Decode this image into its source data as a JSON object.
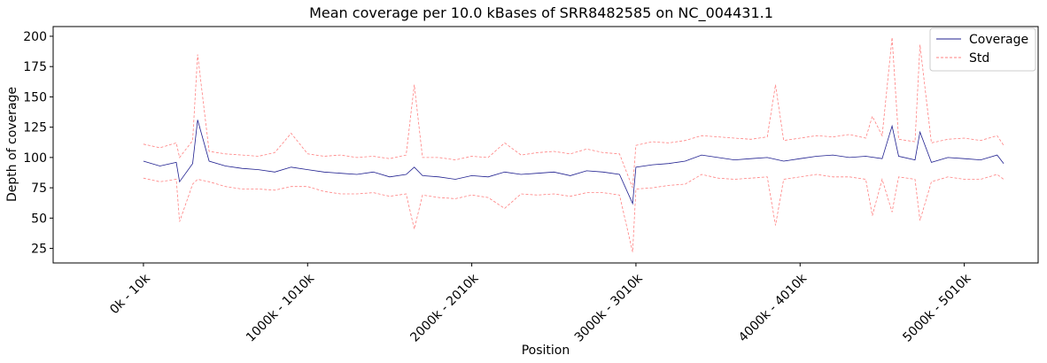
{
  "chart_data": {
    "type": "line",
    "title": "Mean coverage per 10.0 kBases of SRR8482585 on NC_004431.1",
    "xlabel": "Position",
    "ylabel": "Depth of coverage",
    "ylim": [
      13,
      208
    ],
    "xlim": [
      -0.55,
      5.45
    ],
    "x_unit": "Mb",
    "yticks": [
      25,
      50,
      75,
      100,
      125,
      150,
      175,
      200
    ],
    "xticks": [
      {
        "x": 0,
        "label": "0k - 10k"
      },
      {
        "x": 1,
        "label": "1000k - 1010k"
      },
      {
        "x": 2,
        "label": "2000k - 2010k"
      },
      {
        "x": 3,
        "label": "3000k - 3010k"
      },
      {
        "x": 4,
        "label": "4000k - 4010k"
      },
      {
        "x": 5,
        "label": "5000k - 5010k"
      }
    ],
    "grid": false,
    "legend_position": "top-right",
    "colors": {
      "coverage": "#1f1f8f",
      "std": "#ff8080"
    },
    "series": [
      {
        "name": "Coverage",
        "x": [
          0.0,
          0.1,
          0.2,
          0.22,
          0.3,
          0.33,
          0.4,
          0.5,
          0.6,
          0.7,
          0.8,
          0.9,
          1.0,
          1.1,
          1.2,
          1.3,
          1.4,
          1.5,
          1.6,
          1.65,
          1.7,
          1.8,
          1.9,
          2.0,
          2.1,
          2.2,
          2.3,
          2.4,
          2.5,
          2.6,
          2.7,
          2.8,
          2.9,
          2.98,
          3.0,
          3.1,
          3.2,
          3.3,
          3.4,
          3.5,
          3.6,
          3.7,
          3.8,
          3.9,
          4.0,
          4.1,
          4.2,
          4.3,
          4.4,
          4.5,
          4.56,
          4.6,
          4.7,
          4.73,
          4.8,
          4.9,
          5.0,
          5.1,
          5.2,
          5.24
        ],
        "values": [
          97,
          93,
          96,
          80,
          95,
          131,
          97,
          93,
          91,
          90,
          88,
          92,
          90,
          88,
          87,
          86,
          88,
          84,
          86,
          92,
          85,
          84,
          82,
          85,
          84,
          88,
          86,
          87,
          88,
          85,
          89,
          88,
          86,
          62,
          92,
          94,
          95,
          97,
          102,
          100,
          98,
          99,
          100,
          97,
          99,
          101,
          102,
          100,
          101,
          99,
          126,
          101,
          98,
          121,
          96,
          100,
          99,
          98,
          102,
          95
        ]
      },
      {
        "name": "Std",
        "x": [
          0.0,
          0.1,
          0.2,
          0.22,
          0.3,
          0.33,
          0.4,
          0.5,
          0.6,
          0.7,
          0.8,
          0.9,
          1.0,
          1.1,
          1.2,
          1.3,
          1.4,
          1.5,
          1.6,
          1.65,
          1.7,
          1.8,
          1.9,
          2.0,
          2.1,
          2.2,
          2.3,
          2.4,
          2.5,
          2.6,
          2.7,
          2.8,
          2.9,
          2.98,
          3.0,
          3.1,
          3.2,
          3.3,
          3.4,
          3.5,
          3.6,
          3.7,
          3.8,
          3.85,
          3.9,
          4.0,
          4.1,
          4.2,
          4.3,
          4.4,
          4.44,
          4.5,
          4.56,
          4.6,
          4.7,
          4.73,
          4.8,
          4.9,
          5.0,
          5.1,
          5.2,
          5.24
        ],
        "upper": [
          111,
          108,
          112,
          100,
          114,
          185,
          105,
          103,
          102,
          101,
          104,
          120,
          103,
          101,
          102,
          100,
          101,
          99,
          102,
          160,
          100,
          100,
          98,
          101,
          100,
          112,
          102,
          104,
          105,
          103,
          107,
          104,
          103,
          75,
          110,
          113,
          112,
          114,
          118,
          117,
          116,
          115,
          117,
          160,
          114,
          116,
          118,
          117,
          119,
          116,
          134,
          118,
          199,
          115,
          113,
          193,
          112,
          115,
          116,
          114,
          118,
          110
        ],
        "lower": [
          83,
          80,
          82,
          47,
          78,
          82,
          80,
          76,
          74,
          74,
          73,
          76,
          76,
          72,
          70,
          70,
          71,
          68,
          70,
          41,
          69,
          67,
          66,
          69,
          67,
          58,
          70,
          69,
          70,
          68,
          71,
          71,
          69,
          22,
          74,
          75,
          77,
          78,
          86,
          83,
          82,
          83,
          84,
          44,
          82,
          84,
          86,
          84,
          84,
          82,
          52,
          82,
          55,
          84,
          82,
          48,
          80,
          84,
          82,
          82,
          86,
          82
        ]
      }
    ]
  }
}
